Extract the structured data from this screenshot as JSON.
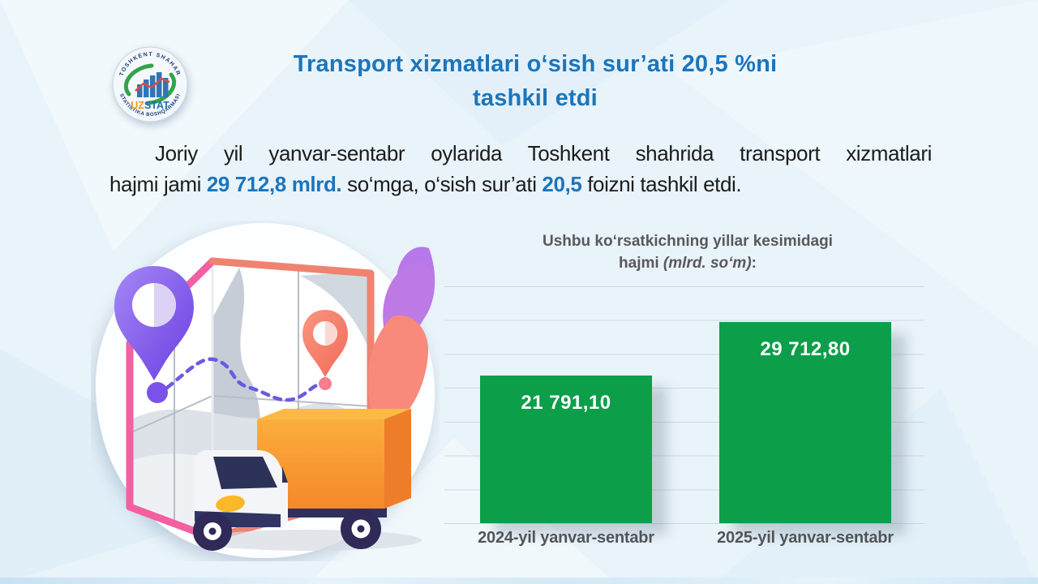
{
  "header": {
    "title_line1": "Transport xizmatlari o‘sish sur’ati 20,5 %ni",
    "title_line2": "tashkil etdi",
    "title_color": "#1b75bc",
    "logo": {
      "arc_top_text": "TOSHKENT SHAHAR",
      "arc_bottom_text": "STATISTIKA BOSHQARMASI",
      "wordmark_uz": "UZ",
      "wordmark_stat": "STAT",
      "uz_color": "#f7941e",
      "stat_color": "#1e6db4"
    }
  },
  "intro": {
    "line1": "Joriy yil yanvar-sentabr oylarida Toshkent shahrida transport xizmatlari",
    "line2_pre": "hajmi jami ",
    "line2_value1": "29 712,8 mlrd.",
    "line2_mid": " so‘mga, o‘sish sur’ati ",
    "line2_value2": "20,5",
    "line2_post": " foizni tashkil etdi.",
    "highlight_color": "#1b75bc"
  },
  "illustration": {
    "name": "delivery-truck-on-map-with-route-pins"
  },
  "chart_data": {
    "type": "bar",
    "title_line1": "Ushbu ko‘rsatkichning yillar kesimidagi",
    "title_line2_regular": "hajmi ",
    "title_line2_italic": "(mlrd. so‘m)",
    "title_line2_suffix": ":",
    "categories": [
      "2024-yil yanvar-sentabr",
      "2025-yil yanvar-sentabr"
    ],
    "values": [
      21791.1,
      29712.8
    ],
    "labels": [
      "21 791,10",
      "29 712,80"
    ],
    "bar_color": "#0d9e4a",
    "label_color": "#ffffff",
    "ylim": [
      0,
      35000
    ],
    "gridline_count": 8,
    "grid": true,
    "legend": false,
    "xlabel": "",
    "ylabel": ""
  }
}
